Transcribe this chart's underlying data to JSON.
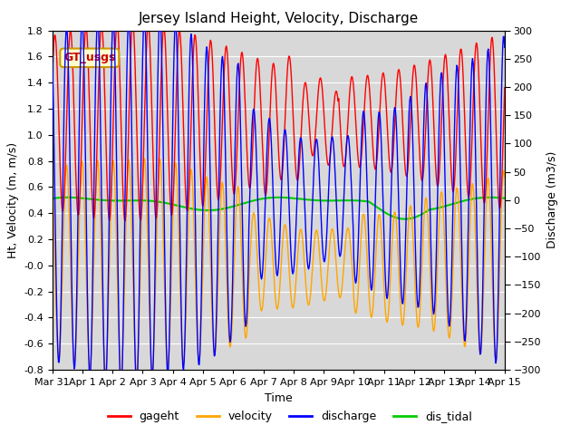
{
  "title": "Jersey Island Height, Velocity, Discharge",
  "xlabel": "Time",
  "ylabel_left": "Ht, Velocity (m, m/s)",
  "ylabel_right": "Discharge (m3/s)",
  "ylim_left": [
    -0.8,
    1.8
  ],
  "ylim_right": [
    -300,
    300
  ],
  "colors": {
    "gageht": "#ff0000",
    "velocity": "#ffa500",
    "discharge": "#0000ff",
    "dis_tidal": "#00cc00"
  },
  "legend_label": "GT_usgs",
  "legend_box_facecolor": "#ffffcc",
  "legend_box_edgecolor": "#cc9900",
  "plot_bg_color": "#d8d8d8",
  "fig_bg_color": "#ffffff",
  "grid_color": "#ffffff",
  "title_fontsize": 11,
  "tick_labelsize": 8,
  "axis_labelsize": 9
}
